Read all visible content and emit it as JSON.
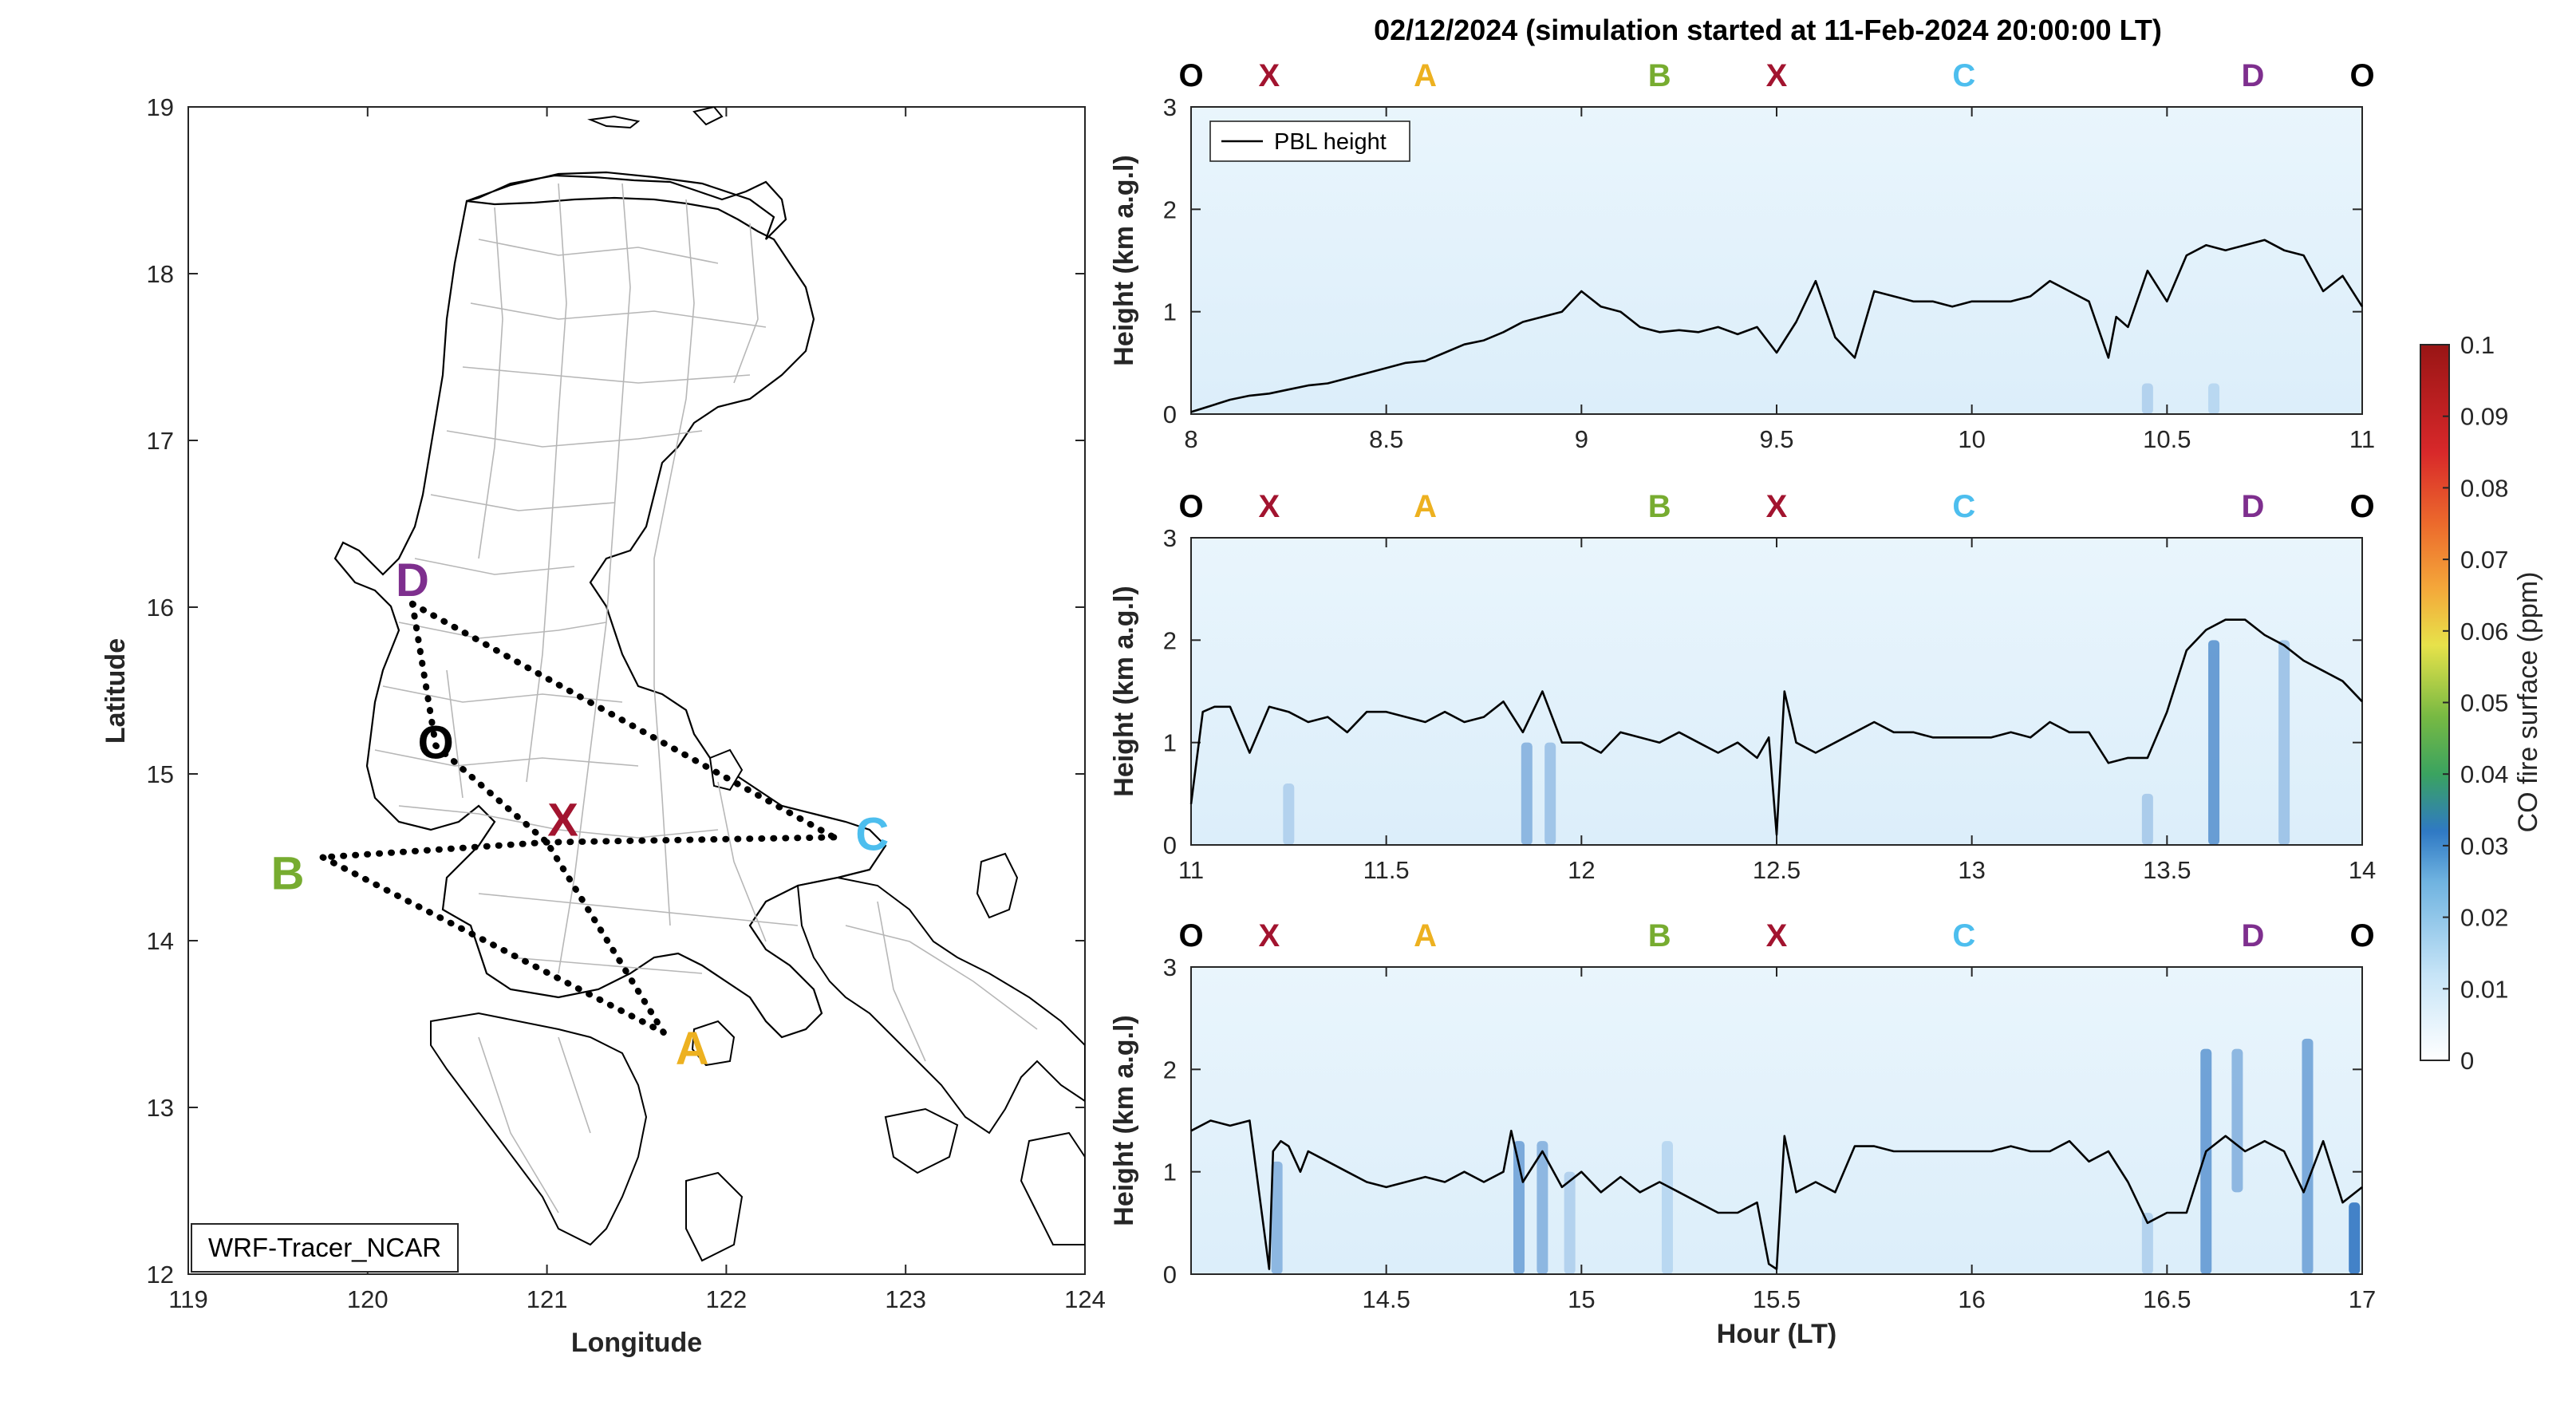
{
  "figure": {
    "title": "02/12/2024 (simulation started at 11-Feb-2024 20:00:00 LT)",
    "colors": {
      "O": "#000000",
      "X": "#a2142f",
      "A": "#edb120",
      "B": "#77ac30",
      "C": "#4dbeee",
      "D": "#7e2f8e",
      "pbl": "#000000"
    }
  },
  "map": {
    "xlabel": "Longitude",
    "ylabel": "Latitude",
    "xticks": [
      "119",
      "120",
      "121",
      "122",
      "123",
      "124"
    ],
    "yticks": [
      "12",
      "13",
      "14",
      "15",
      "16",
      "17",
      "18",
      "19"
    ],
    "xlim": [
      119,
      124
    ],
    "ylim": [
      12,
      19
    ],
    "model_label": "WRF-Tracer_NCAR",
    "points": [
      {
        "id": "D",
        "lon": 120.25,
        "lat": 16.02
      },
      {
        "id": "O",
        "lon": 120.38,
        "lat": 15.17
      },
      {
        "id": "X",
        "lon": 121.0,
        "lat": 14.59
      },
      {
        "id": "C",
        "lon": 122.6,
        "lat": 14.62
      },
      {
        "id": "B",
        "lon": 119.75,
        "lat": 14.5
      },
      {
        "id": "A",
        "lon": 121.65,
        "lat": 13.45
      }
    ],
    "routes": [
      [
        "D",
        "O"
      ],
      [
        "O",
        "X"
      ],
      [
        "D",
        "C"
      ],
      [
        "C",
        "X"
      ],
      [
        "X",
        "B"
      ],
      [
        "B",
        "A"
      ],
      [
        "A",
        "X"
      ]
    ]
  },
  "chart_data": [
    {
      "type": "heatmap",
      "panel": "top",
      "xlim": [
        8,
        11
      ],
      "ylim": [
        0,
        3
      ],
      "xticks": [
        "8",
        "8.5",
        "9",
        "9.5",
        "10",
        "10.5",
        "11"
      ],
      "yticks": [
        "0",
        "1",
        "2",
        "3"
      ],
      "ylabel": "Height (km a.g.l)",
      "xlabel": "",
      "legend": {
        "label": "PBL height",
        "position": "top-left"
      },
      "segment_labels": [
        {
          "id": "O",
          "x": 8.0
        },
        {
          "id": "X",
          "x": 8.2
        },
        {
          "id": "A",
          "x": 8.6
        },
        {
          "id": "B",
          "x": 9.2
        },
        {
          "id": "X",
          "x": 9.5
        },
        {
          "id": "C",
          "x": 9.98
        },
        {
          "id": "D",
          "x": 10.72
        },
        {
          "id": "O",
          "x": 11.0
        }
      ],
      "pbl_height": {
        "x": [
          8.0,
          8.05,
          8.1,
          8.15,
          8.2,
          8.25,
          8.3,
          8.35,
          8.4,
          8.45,
          8.5,
          8.55,
          8.6,
          8.65,
          8.7,
          8.75,
          8.8,
          8.85,
          8.9,
          8.95,
          9.0,
          9.05,
          9.1,
          9.15,
          9.2,
          9.25,
          9.3,
          9.35,
          9.4,
          9.45,
          9.5,
          9.55,
          9.6,
          9.65,
          9.7,
          9.75,
          9.8,
          9.85,
          9.9,
          9.95,
          10.0,
          10.05,
          10.1,
          10.15,
          10.2,
          10.25,
          10.3,
          10.35,
          10.37,
          10.4,
          10.45,
          10.5,
          10.55,
          10.6,
          10.65,
          10.7,
          10.75,
          10.8,
          10.85,
          10.9,
          10.95,
          11.0
        ],
        "y": [
          0.02,
          0.08,
          0.14,
          0.18,
          0.2,
          0.24,
          0.28,
          0.3,
          0.35,
          0.4,
          0.45,
          0.5,
          0.52,
          0.6,
          0.68,
          0.72,
          0.8,
          0.9,
          0.95,
          1.0,
          1.2,
          1.05,
          1.0,
          0.85,
          0.8,
          0.82,
          0.8,
          0.85,
          0.78,
          0.85,
          0.6,
          0.9,
          1.3,
          0.75,
          0.55,
          1.2,
          1.15,
          1.1,
          1.1,
          1.05,
          1.1,
          1.1,
          1.1,
          1.15,
          1.3,
          1.2,
          1.1,
          0.55,
          0.95,
          0.85,
          1.4,
          1.1,
          1.55,
          1.65,
          1.6,
          1.65,
          1.7,
          1.6,
          1.55,
          1.2,
          1.35,
          1.05
        ]
      },
      "co_fire_ppm": [
        {
          "x": 10.45,
          "y0": 0,
          "y1": 0.3,
          "value": 0.01
        },
        {
          "x": 10.62,
          "y0": 0,
          "y1": 0.3,
          "value": 0.008
        }
      ]
    },
    {
      "type": "heatmap",
      "panel": "middle",
      "xlim": [
        11,
        14
      ],
      "ylim": [
        0,
        3
      ],
      "xticks": [
        "11",
        "11.5",
        "12",
        "12.5",
        "13",
        "13.5",
        "14"
      ],
      "yticks": [
        "0",
        "1",
        "2",
        "3"
      ],
      "ylabel": "Height (km a.g.l)",
      "xlabel": "",
      "segment_labels": [
        {
          "id": "O",
          "x": 11.0
        },
        {
          "id": "X",
          "x": 11.2
        },
        {
          "id": "A",
          "x": 11.6
        },
        {
          "id": "B",
          "x": 12.2
        },
        {
          "id": "X",
          "x": 12.5
        },
        {
          "id": "C",
          "x": 12.98
        },
        {
          "id": "D",
          "x": 13.72
        },
        {
          "id": "O",
          "x": 14.0
        }
      ],
      "pbl_height": {
        "x": [
          11.0,
          11.03,
          11.06,
          11.1,
          11.15,
          11.2,
          11.25,
          11.3,
          11.35,
          11.4,
          11.45,
          11.5,
          11.55,
          11.6,
          11.65,
          11.7,
          11.75,
          11.8,
          11.85,
          11.9,
          11.95,
          12.0,
          12.05,
          12.1,
          12.15,
          12.2,
          12.25,
          12.3,
          12.35,
          12.4,
          12.45,
          12.48,
          12.5,
          12.52,
          12.55,
          12.6,
          12.65,
          12.7,
          12.75,
          12.8,
          12.85,
          12.9,
          12.95,
          13.0,
          13.05,
          13.1,
          13.15,
          13.2,
          13.25,
          13.3,
          13.35,
          13.4,
          13.45,
          13.5,
          13.55,
          13.6,
          13.65,
          13.7,
          13.75,
          13.8,
          13.85,
          13.9,
          13.95,
          14.0
        ],
        "y": [
          0.4,
          1.3,
          1.35,
          1.35,
          0.9,
          1.35,
          1.3,
          1.2,
          1.25,
          1.1,
          1.3,
          1.3,
          1.25,
          1.2,
          1.3,
          1.2,
          1.25,
          1.4,
          1.1,
          1.5,
          1.0,
          1.0,
          0.9,
          1.1,
          1.05,
          1.0,
          1.1,
          1.0,
          0.9,
          1.0,
          0.85,
          1.05,
          0.1,
          1.5,
          1.0,
          0.9,
          1.0,
          1.1,
          1.2,
          1.1,
          1.1,
          1.05,
          1.05,
          1.05,
          1.05,
          1.1,
          1.05,
          1.2,
          1.1,
          1.1,
          0.8,
          0.85,
          0.85,
          1.3,
          1.9,
          2.1,
          2.2,
          2.2,
          2.05,
          1.95,
          1.8,
          1.7,
          1.6,
          1.4
        ]
      },
      "co_fire_ppm": [
        {
          "x": 11.25,
          "y0": 0,
          "y1": 0.6,
          "value": 0.01
        },
        {
          "x": 11.86,
          "y0": 0,
          "y1": 1.0,
          "value": 0.02
        },
        {
          "x": 11.92,
          "y0": 0,
          "y1": 1.0,
          "value": 0.015
        },
        {
          "x": 13.45,
          "y0": 0,
          "y1": 0.5,
          "value": 0.012
        },
        {
          "x": 13.62,
          "y0": 0,
          "y1": 2.0,
          "value": 0.03
        },
        {
          "x": 13.8,
          "y0": 0,
          "y1": 2.0,
          "value": 0.015
        }
      ]
    },
    {
      "type": "heatmap",
      "panel": "bottom",
      "xlim": [
        14,
        17
      ],
      "ylim": [
        0,
        3
      ],
      "xticks": [
        "14.5",
        "15",
        "15.5",
        "16",
        "16.5",
        "17"
      ],
      "yticks": [
        "0",
        "1",
        "2",
        "3"
      ],
      "ylabel": "Height (km a.g.l)",
      "xlabel": "Hour (LT)",
      "segment_labels": [
        {
          "id": "O",
          "x": 14.0
        },
        {
          "id": "X",
          "x": 14.2
        },
        {
          "id": "A",
          "x": 14.6
        },
        {
          "id": "B",
          "x": 15.2
        },
        {
          "id": "X",
          "x": 15.5
        },
        {
          "id": "C",
          "x": 15.98
        },
        {
          "id": "D",
          "x": 16.72
        },
        {
          "id": "O",
          "x": 17.0
        }
      ],
      "pbl_height": {
        "x": [
          14.0,
          14.05,
          14.1,
          14.15,
          14.2,
          14.21,
          14.23,
          14.25,
          14.28,
          14.3,
          14.35,
          14.4,
          14.45,
          14.5,
          14.55,
          14.6,
          14.65,
          14.7,
          14.75,
          14.8,
          14.82,
          14.85,
          14.9,
          14.95,
          15.0,
          15.05,
          15.1,
          15.15,
          15.2,
          15.25,
          15.3,
          15.35,
          15.4,
          15.45,
          15.48,
          15.5,
          15.52,
          15.55,
          15.6,
          15.65,
          15.7,
          15.75,
          15.8,
          15.85,
          15.9,
          15.95,
          16.0,
          16.05,
          16.1,
          16.15,
          16.2,
          16.25,
          16.3,
          16.35,
          16.4,
          16.45,
          16.5,
          16.55,
          16.6,
          16.65,
          16.7,
          16.75,
          16.8,
          16.85,
          16.9,
          16.95,
          17.0
        ],
        "y": [
          1.4,
          1.5,
          1.45,
          1.5,
          0.05,
          1.2,
          1.3,
          1.25,
          1.0,
          1.2,
          1.1,
          1.0,
          0.9,
          0.85,
          0.9,
          0.95,
          0.9,
          1.0,
          0.9,
          1.0,
          1.4,
          0.9,
          1.2,
          0.85,
          1.0,
          0.8,
          0.95,
          0.8,
          0.9,
          0.8,
          0.7,
          0.6,
          0.6,
          0.7,
          0.1,
          0.05,
          1.35,
          0.8,
          0.9,
          0.8,
          1.25,
          1.25,
          1.2,
          1.2,
          1.2,
          1.2,
          1.2,
          1.2,
          1.25,
          1.2,
          1.2,
          1.3,
          1.1,
          1.2,
          0.9,
          0.5,
          0.6,
          0.6,
          1.2,
          1.35,
          1.2,
          1.3,
          1.2,
          0.8,
          1.3,
          0.7,
          0.85
        ]
      },
      "co_fire_ppm": [
        {
          "x": 14.22,
          "y0": 0,
          "y1": 1.1,
          "value": 0.02
        },
        {
          "x": 14.84,
          "y0": 0,
          "y1": 1.3,
          "value": 0.025
        },
        {
          "x": 14.9,
          "y0": 0,
          "y1": 1.3,
          "value": 0.02
        },
        {
          "x": 14.97,
          "y0": 0,
          "y1": 1.0,
          "value": 0.01
        },
        {
          "x": 15.22,
          "y0": 0,
          "y1": 1.3,
          "value": 0.008
        },
        {
          "x": 16.45,
          "y0": 0,
          "y1": 0.6,
          "value": 0.01
        },
        {
          "x": 16.6,
          "y0": 0,
          "y1": 2.2,
          "value": 0.028
        },
        {
          "x": 16.68,
          "y0": 0.8,
          "y1": 2.2,
          "value": 0.02
        },
        {
          "x": 16.86,
          "y0": 0,
          "y1": 2.3,
          "value": 0.025
        },
        {
          "x": 16.98,
          "y0": 0,
          "y1": 0.7,
          "value": 0.04
        }
      ]
    }
  ],
  "colorbar": {
    "label": "CO fire surface (ppm)",
    "ticks": [
      "0",
      "0.01",
      "0.02",
      "0.03",
      "0.04",
      "0.05",
      "0.06",
      "0.07",
      "0.08",
      "0.09",
      "0.1"
    ],
    "range": [
      0,
      0.1
    ]
  }
}
